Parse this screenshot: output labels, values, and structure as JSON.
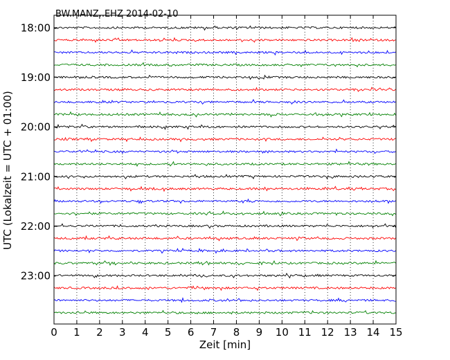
{
  "chart_data": {
    "type": "line",
    "title": "BW.MANZ..EHZ 2014-02-10",
    "xlabel": "Zeit  [min]",
    "ylabel": "UTC (Lokalzeit = UTC + 01:00)",
    "xlim": [
      0,
      15
    ],
    "xticks": [
      "0",
      "1",
      "2",
      "3",
      "4",
      "5",
      "6",
      "7",
      "8",
      "9",
      "10",
      "11",
      "12",
      "13",
      "14",
      "15"
    ],
    "ytick_labels": [
      "18:00",
      "19:00",
      "20:00",
      "21:00",
      "22:00",
      "23:00"
    ],
    "trace_start_times": [
      "18:00",
      "18:15",
      "18:30",
      "18:45",
      "19:00",
      "19:15",
      "19:30",
      "19:45",
      "20:00",
      "20:15",
      "20:30",
      "20:45",
      "21:00",
      "21:15",
      "21:30",
      "21:45",
      "22:00",
      "22:15",
      "22:30",
      "22:45",
      "23:00",
      "23:15",
      "23:30",
      "23:45"
    ],
    "trace_colors": [
      "#000000",
      "#ff0000",
      "#0000ff",
      "#008000"
    ],
    "grid": "vertical dotted lines at each minute"
  }
}
